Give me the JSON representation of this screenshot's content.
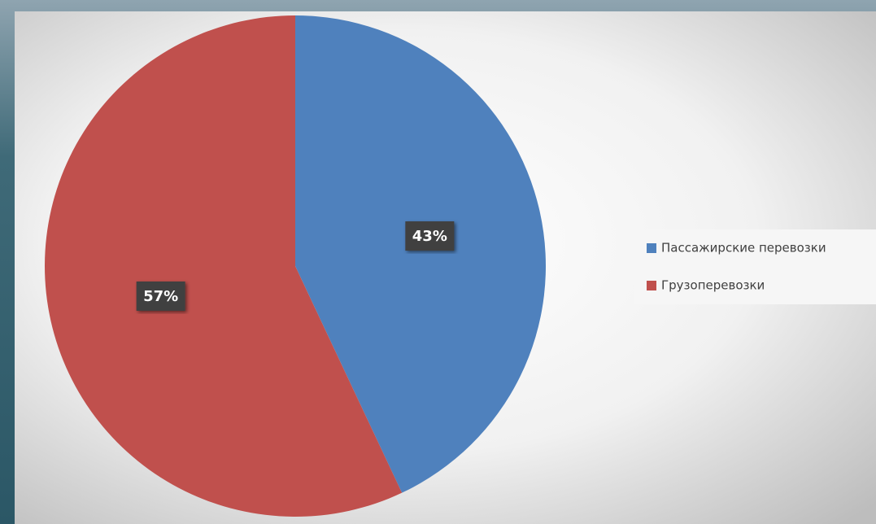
{
  "chart_data": {
    "type": "pie",
    "categories": [
      "Пассажирские перевозки",
      "Грузоперевозки"
    ],
    "values": [
      43,
      57
    ],
    "value_labels": [
      "43%",
      "57%"
    ],
    "colors": [
      "#4f81bd",
      "#c0504d"
    ],
    "legend": "right"
  }
}
